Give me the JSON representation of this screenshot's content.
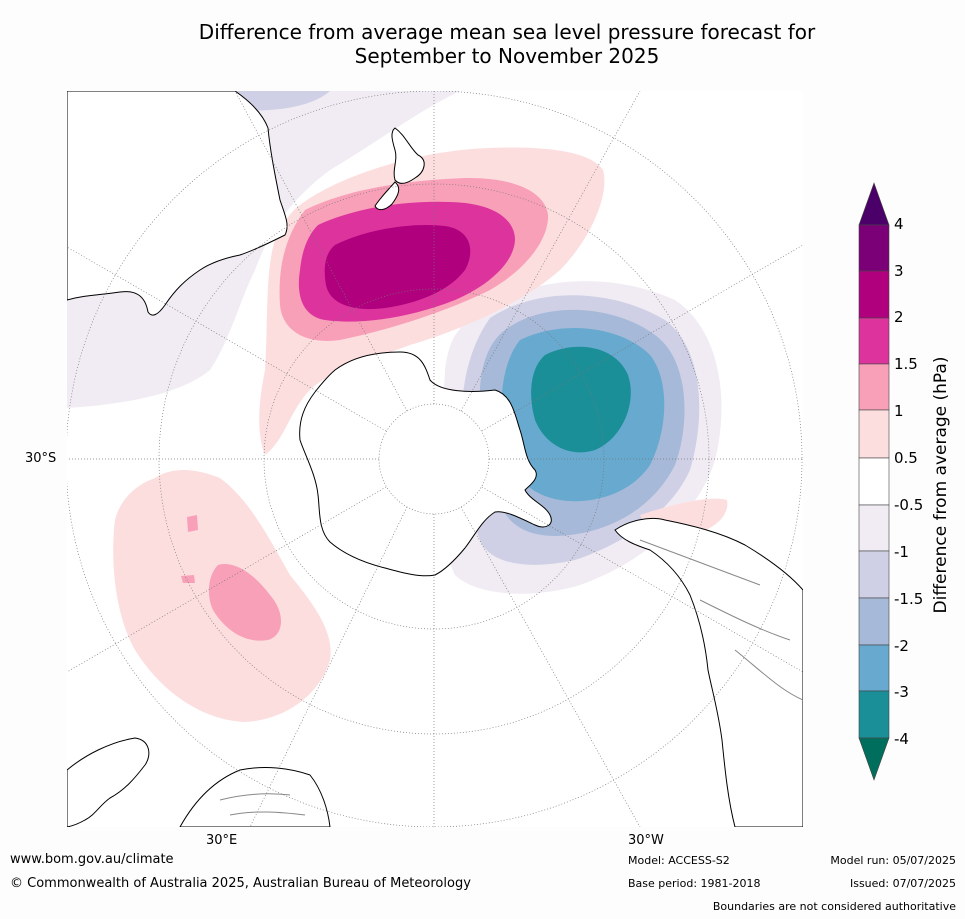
{
  "title": {
    "line1": "Difference from average mean sea level pressure forecast for",
    "line2": "September to November 2025"
  },
  "map": {
    "projection": "south-polar-stereographic",
    "lat_labels": [
      "30°S"
    ],
    "lon_labels": [
      "30°E",
      "30°W"
    ]
  },
  "colorbar": {
    "title": "Difference from average (hPa)",
    "ticks": [
      "4",
      "3",
      "2",
      "1.5",
      "1",
      "0.5",
      "-0.5",
      "-1",
      "-1.5",
      "-2",
      "-3",
      "-4"
    ],
    "colors": {
      "gt4": "#4a0068",
      "3_4": "#7b0078",
      "2_3": "#b0007e",
      "1.5_2": "#dd339d",
      "1_1.5": "#f9a0b9",
      "0.5_1": "#fcdedf",
      "-0.5_0.5": "#ffffff",
      "-1_-0.5": "#f1ecf3",
      "-1.5_-1": "#cfd0e5",
      "-2_-1.5": "#a6b9d8",
      "-3_-2": "#67a9cf",
      "-4_-3": "#1b8f97",
      "lt-4": "#006e5c"
    }
  },
  "footer": {
    "website": "www.bom.gov.au/climate",
    "copyright": "© Commonwealth of Australia 2025, Australian Bureau of Meteorology",
    "model": "Model: ACCESS-S2",
    "base_period": "Base period: 1981-2018",
    "model_run": "Model run: 05/07/2025",
    "issued": "Issued: 07/07/2025",
    "disclaimer": "Boundaries are not considered authoritative"
  }
}
